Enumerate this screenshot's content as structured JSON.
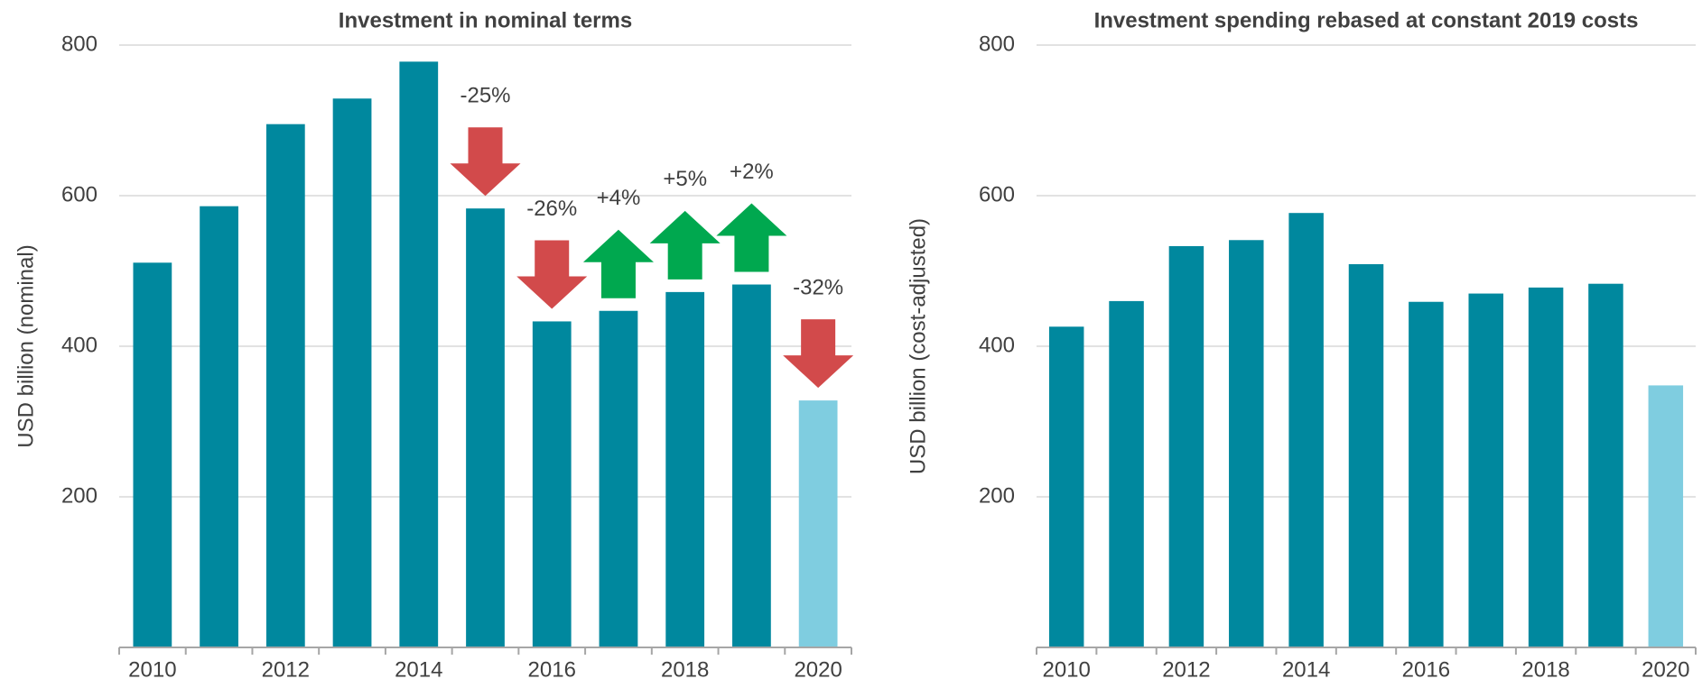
{
  "chart_data": [
    {
      "type": "bar",
      "title": "Investment in nominal terms",
      "y_label": "USD billion (nominal)",
      "categories": [
        "2010",
        null,
        "2012",
        null,
        "2014",
        null,
        "2016",
        null,
        "2018",
        null,
        "2020"
      ],
      "values": [
        511,
        586,
        695,
        729,
        778,
        583,
        433,
        447,
        472,
        482,
        328
      ],
      "colors": [
        "#00889e",
        "#00889e",
        "#00889e",
        "#00889e",
        "#00889e",
        "#00889e",
        "#00889e",
        "#00889e",
        "#00889e",
        "#00889e",
        "#7fcde0"
      ],
      "ylim": [
        0,
        800
      ],
      "yticks": [
        200,
        400,
        600,
        800
      ],
      "grid": true,
      "annotations": [
        {
          "category_index": 5,
          "text": "-25%",
          "direction": "down",
          "color": "#d24a4b"
        },
        {
          "category_index": 6,
          "text": "-26%",
          "direction": "down",
          "color": "#d24a4b"
        },
        {
          "category_index": 7,
          "text": "+4%",
          "direction": "up",
          "color": "#00a84f"
        },
        {
          "category_index": 8,
          "text": "+5%",
          "direction": "up",
          "color": "#00a84f"
        },
        {
          "category_index": 9,
          "text": "+2%",
          "direction": "up",
          "color": "#00a84f"
        },
        {
          "category_index": 10,
          "text": "-32%",
          "direction": "down",
          "color": "#d24a4b"
        }
      ]
    },
    {
      "type": "bar",
      "title": "Investment spending rebased at constant 2019 costs",
      "y_label": "USD billion (cost-adjusted)",
      "categories": [
        "2010",
        null,
        "2012",
        null,
        "2014",
        null,
        "2016",
        null,
        "2018",
        null,
        "2020"
      ],
      "values": [
        426,
        460,
        533,
        541,
        577,
        509,
        459,
        470,
        478,
        483,
        348
      ],
      "colors": [
        "#00889e",
        "#00889e",
        "#00889e",
        "#00889e",
        "#00889e",
        "#00889e",
        "#00889e",
        "#00889e",
        "#00889e",
        "#00889e",
        "#7fcde0"
      ],
      "ylim": [
        0,
        800
      ],
      "yticks": [
        200,
        400,
        600,
        800
      ],
      "grid": true
    }
  ]
}
